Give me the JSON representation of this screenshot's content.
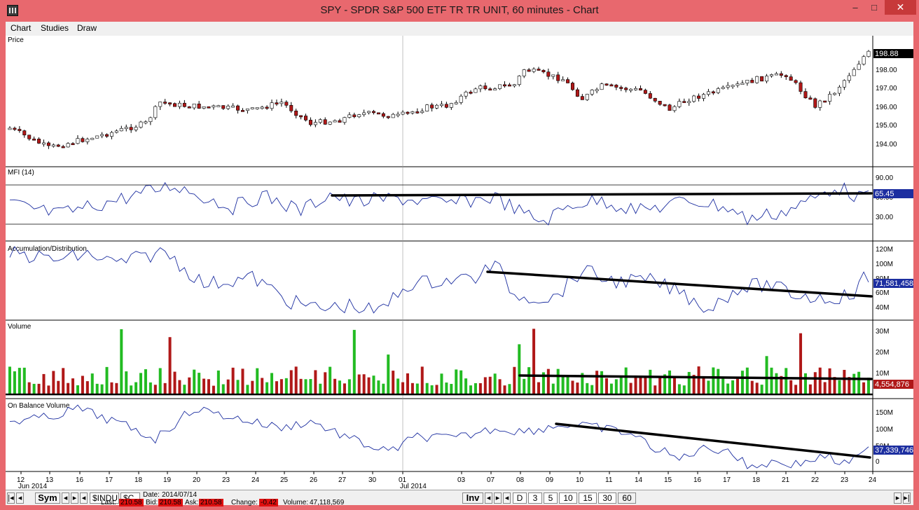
{
  "window": {
    "title": "SPY - SPDR S&P 500 ETF TR TR UNIT, 60 minutes - Chart",
    "min_label": "–",
    "max_label": "□",
    "close_label": "✕"
  },
  "menu": [
    "Chart",
    "Studies",
    "Draw"
  ],
  "colors": {
    "up": "#22bb22",
    "down": "#b01818",
    "line": "#1c2ea0",
    "trend": "#000000",
    "frame": "#e8686e",
    "status_red": "#e01010"
  },
  "panels": {
    "price": {
      "label": "Price",
      "ticks": [
        "198.00",
        "197.00",
        "196.00",
        "195.00",
        "194.00"
      ],
      "last": "198.88"
    },
    "mfi": {
      "label": "MFI (14)",
      "ticks": [
        "90.00",
        "60.00",
        "30.00"
      ],
      "last": "65.45"
    },
    "ad": {
      "label": "Accumulation/Distribution",
      "ticks": [
        "120M",
        "100M",
        "80M",
        "60M",
        "40M"
      ],
      "last": "71,581,458"
    },
    "volume": {
      "label": "Volume",
      "ticks": [
        "30M",
        "20M",
        "10M"
      ],
      "last": "4,554,876"
    },
    "obv": {
      "label": "On Balance Volume",
      "ticks": [
        "150M",
        "100M",
        "50M",
        "0"
      ],
      "last": "37,339,746"
    }
  },
  "x_axis": {
    "days": [
      "12",
      "13",
      "16",
      "17",
      "18",
      "19",
      "20",
      "23",
      "24",
      "25",
      "26",
      "27",
      "30",
      "01",
      "03",
      "07",
      "08",
      "09",
      "10",
      "11",
      "14",
      "15",
      "16",
      "17",
      "18",
      "21",
      "22",
      "23",
      "24"
    ],
    "month_labels": [
      {
        "text": "Jun 2014",
        "day_index": 0
      },
      {
        "text": "Jul 2014",
        "day_index": 13
      }
    ]
  },
  "bottom": {
    "sym_label": "Sym",
    "inv_label": "Inv",
    "symbol_tabs": [
      "$INDU",
      "$C"
    ],
    "interval_tabs": [
      "D",
      "3",
      "5",
      "10",
      "15",
      "30",
      "60"
    ],
    "status": {
      "date_label": "Date:",
      "date_value": "2014/07/14",
      "last_label": "Last:",
      "last_value": "210.58",
      "bid_label": "Bid:",
      "bid_value": "210.58",
      "ask_label": "Ask:",
      "ask_value": "210.58",
      "change_label": "Change:",
      "change_value": "-0.42",
      "volume_label": "Volume:",
      "volume_value": "47,118,569"
    }
  }
}
